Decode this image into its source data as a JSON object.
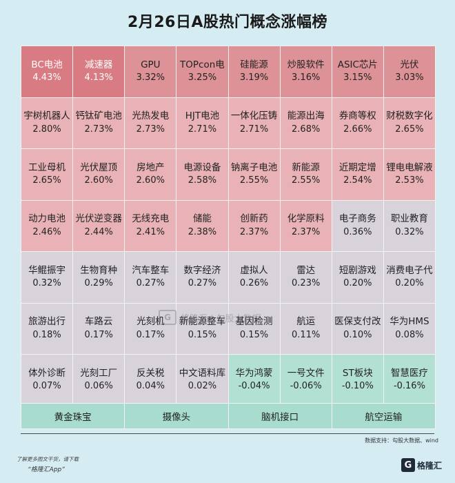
{
  "title": "2月26日A股热门概念涨幅榜",
  "colors": {
    "highlight": "#d97b82",
    "strong_positive": "#dc9296",
    "positive": "#e8b2b6",
    "weak_positive": "#d8d3db",
    "negative": "#b2e0d2",
    "bottom": "#a8dccf"
  },
  "chart_data": {
    "type": "table",
    "columns": 8,
    "items": [
      {
        "name": "BC电池",
        "pct": "4.43%",
        "value": 4.43
      },
      {
        "name": "减速器",
        "pct": "4.13%",
        "value": 4.13
      },
      {
        "name": "GPU",
        "pct": "3.32%",
        "value": 3.32
      },
      {
        "name": "TOPcon电",
        "pct": "3.25%",
        "value": 3.25
      },
      {
        "name": "硅能源",
        "pct": "3.19%",
        "value": 3.19
      },
      {
        "name": "炒股软件",
        "pct": "3.16%",
        "value": 3.16
      },
      {
        "name": "ASIC芯片",
        "pct": "3.15%",
        "value": 3.15
      },
      {
        "name": "光伏",
        "pct": "3.03%",
        "value": 3.03
      },
      {
        "name": "宇树机器人",
        "pct": "2.80%",
        "value": 2.8
      },
      {
        "name": "钙钛矿电池",
        "pct": "2.73%",
        "value": 2.73
      },
      {
        "name": "光热发电",
        "pct": "2.73%",
        "value": 2.73
      },
      {
        "name": "HJT电池",
        "pct": "2.71%",
        "value": 2.71
      },
      {
        "name": "一体化压铸",
        "pct": "2.71%",
        "value": 2.71
      },
      {
        "name": "能源出海",
        "pct": "2.68%",
        "value": 2.68
      },
      {
        "name": "券商等权",
        "pct": "2.66%",
        "value": 2.66
      },
      {
        "name": "财税数字化",
        "pct": "2.65%",
        "value": 2.65
      },
      {
        "name": "工业母机",
        "pct": "2.65%",
        "value": 2.65
      },
      {
        "name": "光伏屋顶",
        "pct": "2.60%",
        "value": 2.6
      },
      {
        "name": "房地产",
        "pct": "2.60%",
        "value": 2.6
      },
      {
        "name": "电源设备",
        "pct": "2.58%",
        "value": 2.58
      },
      {
        "name": "钠离子电池",
        "pct": "2.55%",
        "value": 2.55
      },
      {
        "name": "新能源",
        "pct": "2.55%",
        "value": 2.55
      },
      {
        "name": "近期定增",
        "pct": "2.54%",
        "value": 2.54
      },
      {
        "name": "锂电电解液",
        "pct": "2.53%",
        "value": 2.53
      },
      {
        "name": "动力电池",
        "pct": "2.46%",
        "value": 2.46
      },
      {
        "name": "光伏逆变器",
        "pct": "2.44%",
        "value": 2.44
      },
      {
        "name": "无线充电",
        "pct": "2.41%",
        "value": 2.41
      },
      {
        "name": "储能",
        "pct": "2.38%",
        "value": 2.38
      },
      {
        "name": "创新药",
        "pct": "2.37%",
        "value": 2.37
      },
      {
        "name": "化学原料",
        "pct": "2.37%",
        "value": 2.37
      },
      {
        "name": "电子商务",
        "pct": "0.36%",
        "value": 0.36
      },
      {
        "name": "职业教育",
        "pct": "0.32%",
        "value": 0.32
      },
      {
        "name": "华鲲振宇",
        "pct": "0.32%",
        "value": 0.32
      },
      {
        "name": "生物育种",
        "pct": "0.29%",
        "value": 0.29
      },
      {
        "name": "汽车整车",
        "pct": "0.27%",
        "value": 0.27
      },
      {
        "name": "数字经济",
        "pct": "0.27%",
        "value": 0.27
      },
      {
        "name": "虚拟人",
        "pct": "0.26%",
        "value": 0.26
      },
      {
        "name": "雷达",
        "pct": "0.23%",
        "value": 0.23
      },
      {
        "name": "短剧游戏",
        "pct": "0.20%",
        "value": 0.2
      },
      {
        "name": "消费电子代",
        "pct": "0.20%",
        "value": 0.2
      },
      {
        "name": "旅游出行",
        "pct": "0.18%",
        "value": 0.18
      },
      {
        "name": "车路云",
        "pct": "0.17%",
        "value": 0.17
      },
      {
        "name": "光刻机",
        "pct": "0.17%",
        "value": 0.17
      },
      {
        "name": "新能源整车",
        "pct": "0.15%",
        "value": 0.15
      },
      {
        "name": "基因检测",
        "pct": "0.15%",
        "value": 0.15
      },
      {
        "name": "航运",
        "pct": "0.11%",
        "value": 0.11
      },
      {
        "name": "医保支付改",
        "pct": "0.10%",
        "value": 0.1
      },
      {
        "name": "华为HMS",
        "pct": "0.08%",
        "value": 0.08
      },
      {
        "name": "体外诊断",
        "pct": "0.07%",
        "value": 0.07
      },
      {
        "name": "光刻工厂",
        "pct": "0.06%",
        "value": 0.06
      },
      {
        "name": "反关税",
        "pct": "0.04%",
        "value": 0.04
      },
      {
        "name": "中文语料库",
        "pct": "0.02%",
        "value": 0.02
      },
      {
        "name": "华为鸿蒙",
        "pct": "-0.04%",
        "value": -0.04
      },
      {
        "name": "一号文件",
        "pct": "-0.06%",
        "value": -0.06
      },
      {
        "name": "ST板块",
        "pct": "-0.10%",
        "value": -0.1
      },
      {
        "name": "智慧医疗",
        "pct": "-0.16%",
        "value": -0.16
      }
    ],
    "bottom_items": [
      "黄金珠宝",
      "摄像头",
      "脑机接口",
      "航空运输"
    ]
  },
  "watermark": {
    "logo": "G",
    "text": "格隆汇 | 勾股大数据"
  },
  "source": "数据支持：勾股大数据、wind",
  "promo": {
    "line1": "了解更多图文干货，请下载",
    "line2": "“格隆汇App”"
  },
  "logo": {
    "mark": "G",
    "text": "格隆汇"
  }
}
